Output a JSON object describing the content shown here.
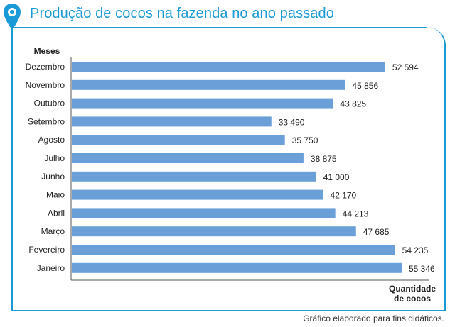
{
  "title": "Produção de cocos na fazenda no ano passado",
  "source": "Gráfico elaborado para fins didáticos.",
  "colors": {
    "accent": "#1a9ad6",
    "bar": "#6a9fd8",
    "text": "#222222"
  },
  "chart_data": {
    "type": "bar",
    "orientation": "horizontal",
    "title": "Produção de cocos na fazenda no ano passado",
    "ylabel": "Meses",
    "xlabel_lines": [
      "Quantidade",
      "de cocos"
    ],
    "xlim": [
      0,
      60000
    ],
    "grid": false,
    "categories": [
      "Dezembro",
      "Novembro",
      "Outubro",
      "Setembro",
      "Agosto",
      "Julho",
      "Junho",
      "Maio",
      "Abril",
      "Março",
      "Fevereiro",
      "Janeiro"
    ],
    "values": [
      52594,
      45856,
      43825,
      33490,
      35750,
      38875,
      41000,
      42170,
      44213,
      47685,
      54235,
      55346
    ],
    "value_labels": [
      "52 594",
      "45 856",
      "43 825",
      "33 490",
      "35 750",
      "38 875",
      "41 000",
      "42 170",
      "44 213",
      "47 685",
      "54 235",
      "55 346"
    ]
  }
}
